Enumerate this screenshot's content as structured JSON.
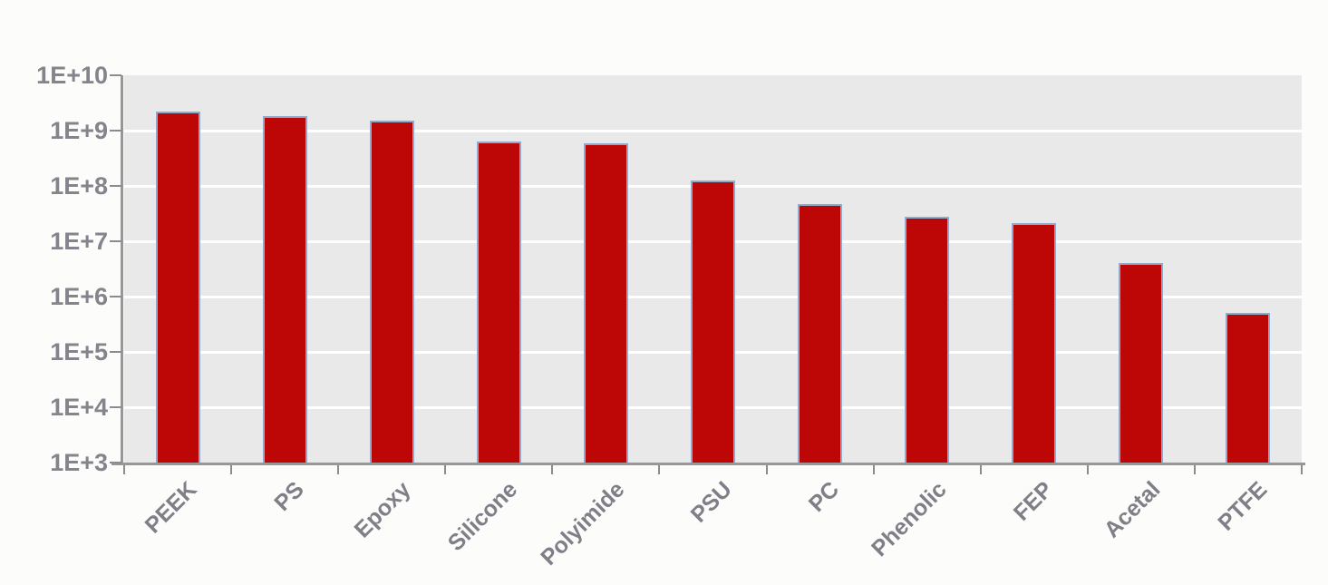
{
  "chart_data": {
    "type": "bar",
    "title": "",
    "scale": "log",
    "categories": [
      "PEEK",
      "PS",
      "Epoxy",
      "Silicone",
      "Polyimide",
      "PSU",
      "PC",
      "Phenolic",
      "FEP",
      "Acetal",
      "PTFE"
    ],
    "values": [
      2200000000,
      1800000000,
      1500000000,
      630000000,
      600000000,
      125000000,
      47000000,
      28000000,
      21000000,
      4000000,
      500000
    ],
    "y_tick_labels": [
      "1E+10",
      "1E+9",
      "1E+8",
      "1E+7",
      "1E+6",
      "1E+5",
      "1E+4",
      "1E+3"
    ],
    "ylim": [
      1000,
      10000000000
    ],
    "xlabel": "",
    "ylabel": "",
    "grid": "horizontal",
    "legend": "none",
    "colors": {
      "bar_fill": "#bd0606",
      "bar_border": "#8cabcd",
      "plot_bg": "#e9e9e9",
      "gridline": "#ffffff",
      "axis_line": "#979797",
      "tick": "#8c8c8c",
      "tick_label": "#84848c",
      "category_label": "#7f7f88",
      "page_bg": "#fcfcfb"
    }
  }
}
